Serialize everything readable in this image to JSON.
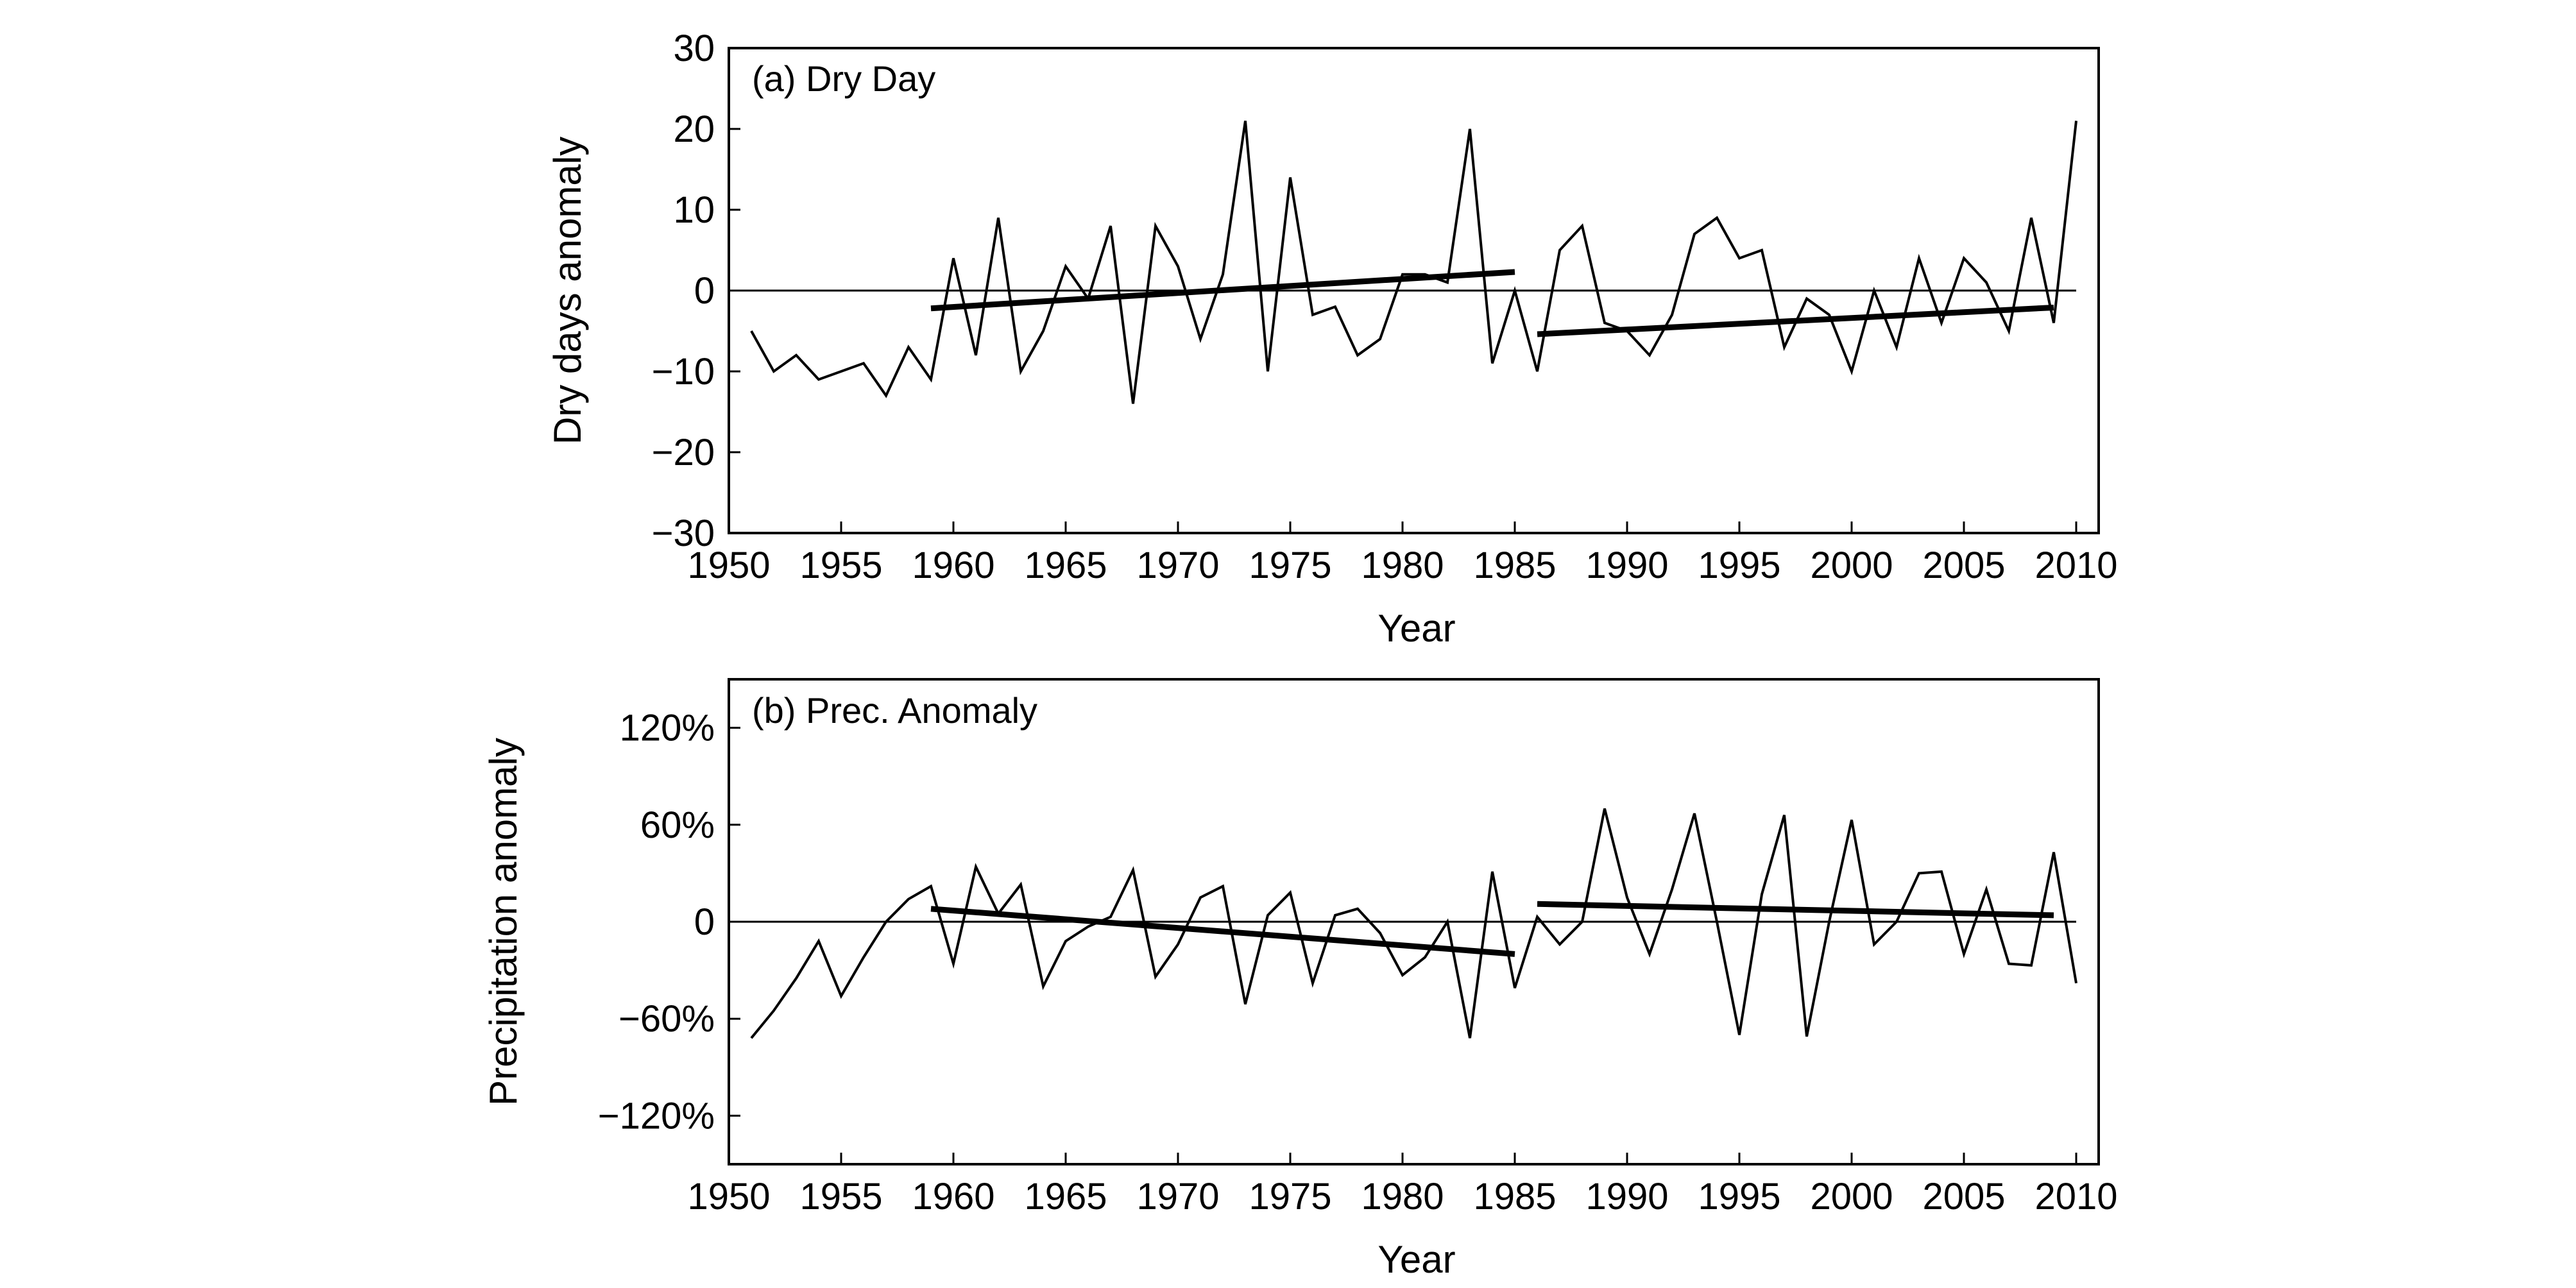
{
  "chart_data": [
    {
      "type": "line",
      "title": "(a)  Dry Day",
      "xlabel": "Year",
      "ylabel": "Dry days anomaly",
      "xlim": [
        1950,
        2011
      ],
      "ylim": [
        -30,
        30
      ],
      "xticks": [
        1950,
        1955,
        1960,
        1965,
        1970,
        1975,
        1980,
        1985,
        1990,
        1995,
        2000,
        2005,
        2010
      ],
      "xtick_labels": [
        "1950",
        "1955",
        "1960",
        "1965",
        "1970",
        "1975",
        "1980",
        "1985",
        "1990",
        "1995",
        "2000",
        "2005",
        "2010"
      ],
      "yticks": [
        30,
        20,
        10,
        0,
        -10,
        -20,
        -30
      ],
      "ytick_labels": [
        "30",
        "20",
        "10",
        "0",
        "−10",
        "−20",
        "−30"
      ],
      "zero_line": true,
      "grid": false,
      "series": [
        {
          "x": [
            1951,
            1952,
            1953,
            1954,
            1955,
            1956,
            1957,
            1958,
            1959,
            1960,
            1961,
            1962,
            1963,
            1964,
            1965,
            1966,
            1967,
            1968,
            1969,
            1970,
            1971,
            1972,
            1973,
            1974,
            1975,
            1976,
            1977,
            1978,
            1979,
            1980,
            1981,
            1982,
            1983,
            1984,
            1985,
            1986,
            1987,
            1988,
            1989,
            1990,
            1991,
            1992,
            1993,
            1994,
            1995,
            1996,
            1997,
            1998,
            1999,
            2000,
            2001,
            2002,
            2003,
            2004,
            2005,
            2006,
            2007,
            2008,
            2009,
            2010
          ],
          "y": [
            -5,
            -10,
            -8,
            -11,
            -10,
            -9,
            -13,
            -7,
            -11,
            4,
            -8,
            9,
            -10,
            -5,
            3,
            -1,
            8,
            -14,
            8,
            3,
            -6,
            2,
            21,
            -10,
            14,
            -3,
            -2,
            -8,
            -6,
            2,
            2,
            1,
            20,
            -9,
            0,
            -10,
            5,
            8,
            -4,
            -5,
            -8,
            -3,
            7,
            9,
            4,
            5,
            -7,
            -1,
            -3,
            -10,
            0,
            -7,
            4,
            -4,
            4,
            1,
            -5,
            9,
            -4,
            21
          ]
        }
      ],
      "trend_lines": [
        {
          "x": [
            1959,
            1985
          ],
          "y": [
            -2.2,
            2.3
          ]
        },
        {
          "x": [
            1986,
            2009
          ],
          "y": [
            -5.4,
            -2.1
          ]
        }
      ]
    },
    {
      "type": "line",
      "title": "(b)  Prec. Anomaly",
      "xlabel": "Year",
      "ylabel": "Precipitation anomaly",
      "xlim": [
        1950,
        2011
      ],
      "ylim": [
        -150,
        150
      ],
      "xticks": [
        1950,
        1955,
        1960,
        1965,
        1970,
        1975,
        1980,
        1985,
        1990,
        1995,
        2000,
        2005,
        2010
      ],
      "xtick_labels": [
        "1950",
        "1955",
        "1960",
        "1965",
        "1970",
        "1975",
        "1980",
        "1985",
        "1990",
        "1995",
        "2000",
        "2005",
        "2010"
      ],
      "yticks": [
        120,
        60,
        0,
        -60,
        -120
      ],
      "ytick_labels": [
        "120%",
        "60%",
        "0",
        "−60%",
        "−120%"
      ],
      "zero_line": true,
      "grid": false,
      "series": [
        {
          "x": [
            1951,
            1952,
            1953,
            1954,
            1955,
            1956,
            1957,
            1958,
            1959,
            1960,
            1961,
            1962,
            1963,
            1964,
            1965,
            1966,
            1967,
            1968,
            1969,
            1970,
            1971,
            1972,
            1973,
            1974,
            1975,
            1976,
            1977,
            1978,
            1979,
            1980,
            1981,
            1982,
            1983,
            1984,
            1985,
            1986,
            1987,
            1988,
            1989,
            1990,
            1991,
            1992,
            1993,
            1994,
            1995,
            1996,
            1997,
            1998,
            1999,
            2000,
            2001,
            2002,
            2003,
            2004,
            2005,
            2006,
            2007,
            2008,
            2009,
            2010
          ],
          "y": [
            -72,
            -55,
            -35,
            -12,
            -46,
            -22,
            0,
            14,
            22,
            -26,
            34,
            5,
            23,
            -40,
            -12,
            -3,
            3,
            32,
            -34,
            -14,
            15,
            22,
            -51,
            4,
            18,
            -38,
            4,
            8,
            -7,
            -33,
            -22,
            0,
            -72,
            31,
            -41,
            3,
            -14,
            0,
            70,
            15,
            -20,
            20,
            67,
            0,
            -70,
            17,
            66,
            -71,
            0,
            63,
            -14,
            0,
            30,
            31,
            -20,
            20,
            -26,
            -27,
            43,
            -38
          ]
        }
      ],
      "trend_lines": [
        {
          "x": [
            1959,
            1985
          ],
          "y": [
            8,
            -20
          ]
        },
        {
          "x": [
            1986,
            2009
          ],
          "y": [
            11,
            4
          ]
        }
      ]
    }
  ]
}
